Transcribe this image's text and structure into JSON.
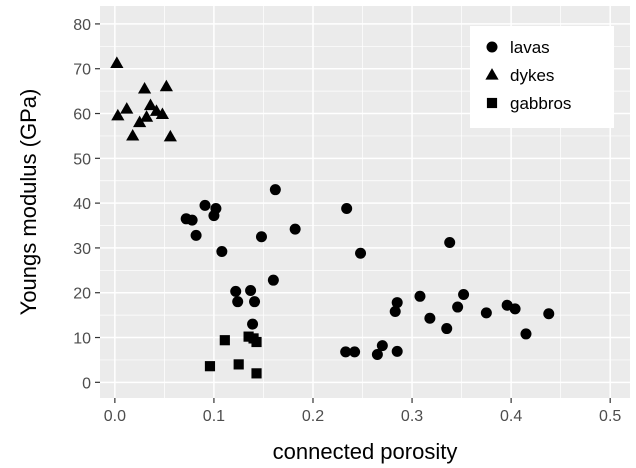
{
  "chart_data": {
    "type": "scatter",
    "title": "",
    "xlabel": "connected porosity",
    "ylabel": "Youngs modulus (GPa)",
    "xlim": [
      -0.015,
      0.52
    ],
    "ylim": [
      -3.5,
      84
    ],
    "x_ticks": [
      "0.0",
      "0.1",
      "0.2",
      "0.3",
      "0.4",
      "0.5"
    ],
    "x_tick_values": [
      0,
      0.1,
      0.2,
      0.3,
      0.4,
      0.5
    ],
    "y_ticks": [
      "0",
      "10",
      "20",
      "30",
      "40",
      "50",
      "60",
      "70",
      "80"
    ],
    "y_tick_values": [
      0,
      10,
      20,
      30,
      40,
      50,
      60,
      70,
      80
    ],
    "grid": true,
    "legend_position": "top-right",
    "background": "#ebebeb",
    "series": [
      {
        "name": "lavas",
        "marker": "circle",
        "points": [
          [
            0.072,
            36.5
          ],
          [
            0.078,
            36.2
          ],
          [
            0.082,
            32.8
          ],
          [
            0.091,
            39.5
          ],
          [
            0.1,
            37.2
          ],
          [
            0.102,
            38.8
          ],
          [
            0.108,
            29.2
          ],
          [
            0.122,
            20.3
          ],
          [
            0.124,
            18.0
          ],
          [
            0.137,
            20.5
          ],
          [
            0.139,
            13.0
          ],
          [
            0.141,
            18.0
          ],
          [
            0.148,
            32.5
          ],
          [
            0.16,
            22.8
          ],
          [
            0.162,
            43.0
          ],
          [
            0.182,
            34.2
          ],
          [
            0.234,
            38.8
          ],
          [
            0.233,
            6.8
          ],
          [
            0.242,
            6.8
          ],
          [
            0.248,
            28.8
          ],
          [
            0.265,
            6.2
          ],
          [
            0.27,
            8.2
          ],
          [
            0.283,
            15.8
          ],
          [
            0.285,
            17.8
          ],
          [
            0.285,
            6.9
          ],
          [
            0.308,
            19.2
          ],
          [
            0.318,
            14.3
          ],
          [
            0.335,
            12.0
          ],
          [
            0.338,
            31.2
          ],
          [
            0.346,
            16.8
          ],
          [
            0.352,
            19.6
          ],
          [
            0.375,
            15.5
          ],
          [
            0.396,
            17.2
          ],
          [
            0.404,
            16.4
          ],
          [
            0.415,
            10.8
          ],
          [
            0.438,
            15.3
          ]
        ]
      },
      {
        "name": "dykes",
        "marker": "triangle",
        "points": [
          [
            0.002,
            71.2
          ],
          [
            0.003,
            59.5
          ],
          [
            0.012,
            61.0
          ],
          [
            0.018,
            55.0
          ],
          [
            0.025,
            58.0
          ],
          [
            0.03,
            65.5
          ],
          [
            0.032,
            59.2
          ],
          [
            0.036,
            61.8
          ],
          [
            0.042,
            60.5
          ],
          [
            0.048,
            59.8
          ],
          [
            0.052,
            66.0
          ],
          [
            0.056,
            54.8
          ]
        ]
      },
      {
        "name": "gabbros",
        "marker": "square",
        "points": [
          [
            0.096,
            3.6
          ],
          [
            0.111,
            9.4
          ],
          [
            0.125,
            4.0
          ],
          [
            0.135,
            10.2
          ],
          [
            0.14,
            9.8
          ],
          [
            0.143,
            9.0
          ],
          [
            0.143,
            2.0
          ]
        ]
      }
    ]
  }
}
